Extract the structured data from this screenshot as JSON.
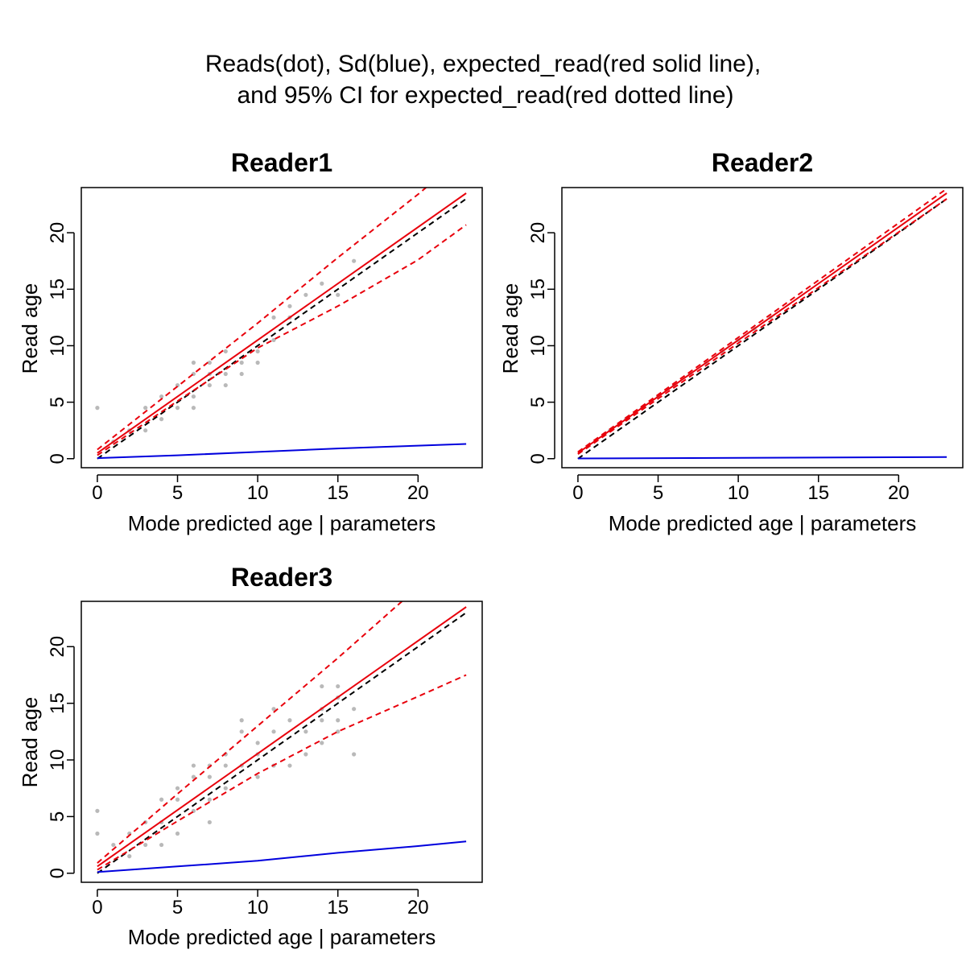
{
  "figure": {
    "title_line1": "Reads(dot), Sd(blue), expected_read(red solid line),",
    "title_line2": "and 95% CI for expected_read(red dotted line)"
  },
  "colors": {
    "expected": "#e8000b",
    "ci": "#e8000b",
    "sd": "#0000dd",
    "identity": "#000000",
    "points": "#808080"
  },
  "chart_data": [
    {
      "type": "scatter",
      "title": "Reader1",
      "xlabel": "Mode predicted age | parameters",
      "ylabel": "Read age",
      "xlim": [
        -1,
        24
      ],
      "ylim": [
        -0.8,
        24
      ],
      "xticks": [
        0,
        5,
        10,
        15,
        20
      ],
      "yticks": [
        0,
        5,
        10,
        15,
        20
      ],
      "points": [
        [
          0,
          4.5
        ],
        [
          1,
          1.5
        ],
        [
          2,
          2.5
        ],
        [
          3,
          4.5
        ],
        [
          3,
          2.5
        ],
        [
          4,
          5.5
        ],
        [
          4,
          3.5
        ],
        [
          5,
          6.5
        ],
        [
          5,
          4.5
        ],
        [
          6,
          8.5
        ],
        [
          6,
          7.5
        ],
        [
          6,
          5.5
        ],
        [
          6,
          4.5
        ],
        [
          7,
          8.5
        ],
        [
          7,
          7.5
        ],
        [
          7,
          6.5
        ],
        [
          8,
          9.5
        ],
        [
          8,
          7.5
        ],
        [
          8,
          6.5
        ],
        [
          9,
          8.5
        ],
        [
          9,
          7.5
        ],
        [
          10,
          9.5
        ],
        [
          10,
          8.5
        ],
        [
          11,
          12.5
        ],
        [
          11,
          10.5
        ],
        [
          12,
          13.5
        ],
        [
          12,
          12.5
        ],
        [
          13,
          14.5
        ],
        [
          14,
          15.5
        ],
        [
          15,
          14.5
        ],
        [
          16,
          17.5
        ]
      ],
      "expected": [
        [
          0,
          0.5
        ],
        [
          23,
          23.5
        ]
      ],
      "ci_upper": [
        [
          0,
          0.8
        ],
        [
          5,
          6.4
        ],
        [
          10,
          12.0
        ],
        [
          15,
          17.8
        ],
        [
          20,
          23.4
        ],
        [
          21,
          24.6
        ]
      ],
      "ci_lower": [
        [
          0,
          0.3
        ],
        [
          5,
          5.1
        ],
        [
          10,
          9.8
        ],
        [
          15,
          13.5
        ],
        [
          20,
          17.6
        ],
        [
          23,
          20.7
        ]
      ],
      "sd": [
        [
          0,
          0.05
        ],
        [
          5,
          0.3
        ],
        [
          10,
          0.6
        ],
        [
          15,
          0.9
        ],
        [
          20,
          1.15
        ],
        [
          23,
          1.3
        ]
      ],
      "identity": [
        [
          0,
          0
        ],
        [
          23,
          23
        ]
      ]
    },
    {
      "type": "scatter",
      "title": "Reader2",
      "xlabel": "Mode predicted age | parameters",
      "ylabel": "Read age",
      "xlim": [
        -1,
        24
      ],
      "ylim": [
        -0.8,
        24
      ],
      "xticks": [
        0,
        5,
        10,
        15,
        20
      ],
      "yticks": [
        0,
        5,
        10,
        15,
        20
      ],
      "points": [
        [
          2,
          2.5
        ],
        [
          3,
          3.5
        ],
        [
          4,
          4.5
        ],
        [
          5,
          5.5
        ],
        [
          6,
          6.5
        ],
        [
          7,
          7.5
        ],
        [
          8,
          8.5
        ],
        [
          9,
          9.5
        ],
        [
          10,
          10.5
        ],
        [
          11,
          11.5
        ],
        [
          12,
          12.5
        ]
      ],
      "expected": [
        [
          0,
          0.5
        ],
        [
          23,
          23.5
        ]
      ],
      "ci_upper": [
        [
          0,
          0.6
        ],
        [
          23,
          23.9
        ]
      ],
      "ci_lower": [
        [
          0,
          0.4
        ],
        [
          23,
          23.0
        ]
      ],
      "sd": [
        [
          0,
          0.02
        ],
        [
          23,
          0.15
        ]
      ],
      "identity": [
        [
          0,
          0
        ],
        [
          23,
          23
        ]
      ]
    },
    {
      "type": "scatter",
      "title": "Reader3",
      "xlabel": "Mode predicted age | parameters",
      "ylabel": "Read age",
      "xlim": [
        -1,
        24
      ],
      "ylim": [
        -0.8,
        24
      ],
      "xticks": [
        0,
        5,
        10,
        15,
        20
      ],
      "yticks": [
        0,
        5,
        10,
        15,
        20
      ],
      "points": [
        [
          0,
          5.5
        ],
        [
          0,
          3.5
        ],
        [
          1,
          2.5
        ],
        [
          2,
          3.5
        ],
        [
          2,
          1.5
        ],
        [
          3,
          4.5
        ],
        [
          3,
          2.5
        ],
        [
          4,
          6.5
        ],
        [
          4,
          4.5
        ],
        [
          4,
          2.5
        ],
        [
          5,
          7.5
        ],
        [
          5,
          6.5
        ],
        [
          5,
          3.5
        ],
        [
          6,
          9.5
        ],
        [
          6,
          8.5
        ],
        [
          6,
          5.5
        ],
        [
          7,
          9.5
        ],
        [
          7,
          8.5
        ],
        [
          7,
          6.5
        ],
        [
          7,
          4.5
        ],
        [
          8,
          10.5
        ],
        [
          8,
          9.5
        ],
        [
          8,
          7.5
        ],
        [
          9,
          13.5
        ],
        [
          9,
          12.5
        ],
        [
          9,
          9.5
        ],
        [
          10,
          11.5
        ],
        [
          10,
          10.5
        ],
        [
          10,
          8.5
        ],
        [
          11,
          14.5
        ],
        [
          11,
          12.5
        ],
        [
          11,
          9.5
        ],
        [
          12,
          13.5
        ],
        [
          12,
          9.5
        ],
        [
          13,
          12.5
        ],
        [
          13,
          10.5
        ],
        [
          14,
          16.5
        ],
        [
          14,
          14.5
        ],
        [
          14,
          13.5
        ],
        [
          14,
          11.5
        ],
        [
          15,
          16.5
        ],
        [
          15,
          15.5
        ],
        [
          15,
          13.5
        ],
        [
          15,
          12.5
        ],
        [
          16,
          14.5
        ],
        [
          16,
          10.5
        ]
      ],
      "expected": [
        [
          0,
          0.6
        ],
        [
          23,
          23.5
        ]
      ],
      "ci_upper": [
        [
          0,
          0.9
        ],
        [
          5,
          7.0
        ],
        [
          10,
          13.0
        ],
        [
          15,
          19.0
        ],
        [
          19,
          24.0
        ]
      ],
      "ci_lower": [
        [
          0,
          0.3
        ],
        [
          5,
          4.6
        ],
        [
          10,
          8.8
        ],
        [
          15,
          12.5
        ],
        [
          20,
          15.6
        ],
        [
          23,
          17.5
        ]
      ],
      "sd": [
        [
          0,
          0.1
        ],
        [
          5,
          0.6
        ],
        [
          10,
          1.1
        ],
        [
          15,
          1.8
        ],
        [
          20,
          2.4
        ],
        [
          23,
          2.8
        ]
      ],
      "identity": [
        [
          0,
          0
        ],
        [
          23,
          23
        ]
      ]
    }
  ]
}
